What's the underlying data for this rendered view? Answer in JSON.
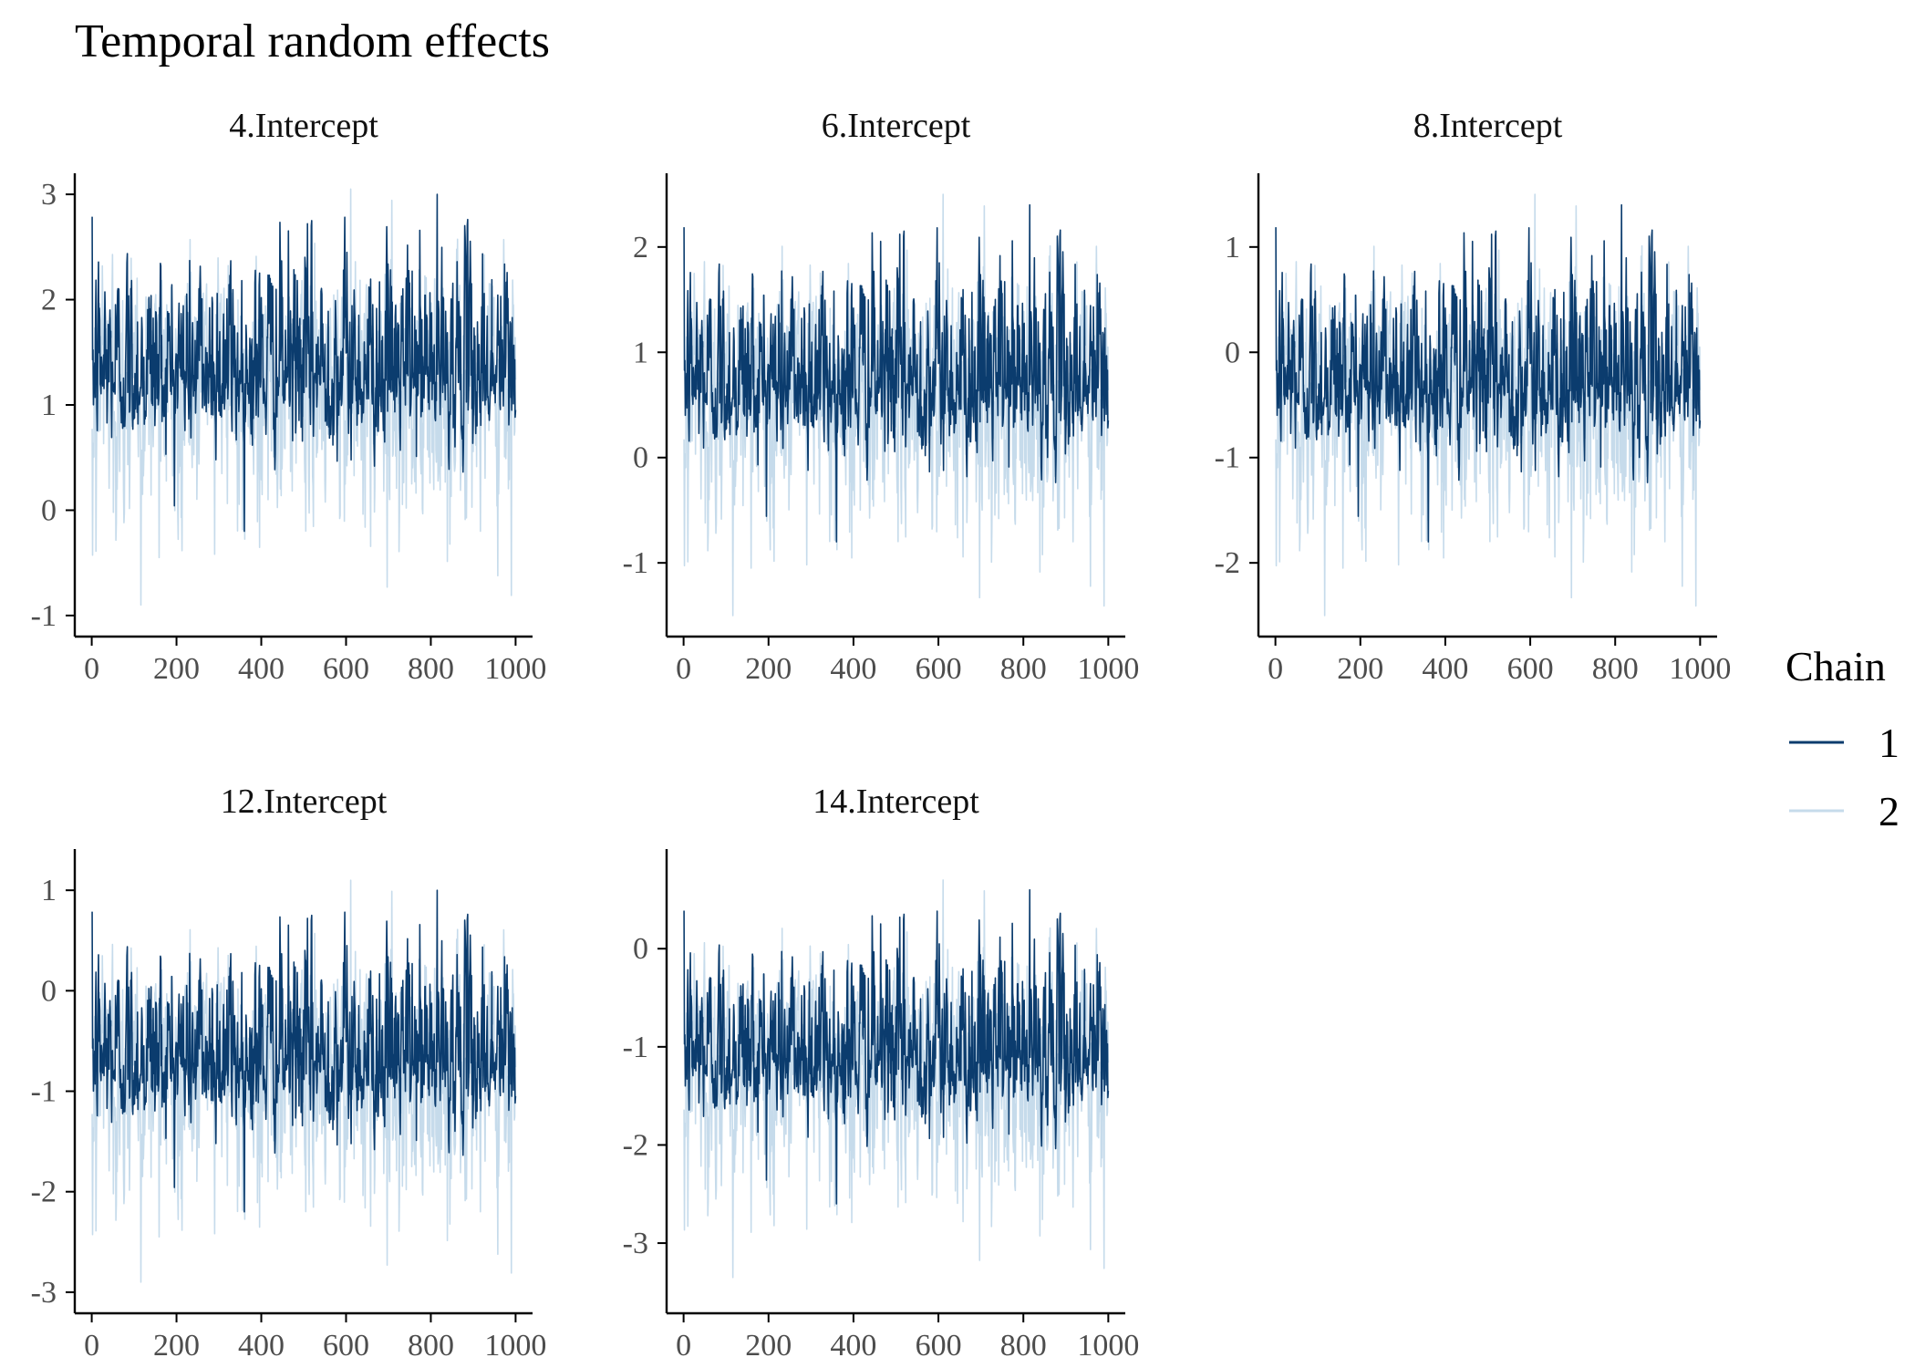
{
  "title": "Temporal random effects",
  "colors": {
    "chain1": "#0b3c6e",
    "chain2": "#c6dbeb",
    "axis": "#000000",
    "tick_text": "#4d4d4d"
  },
  "legend": {
    "title": "Chain",
    "items": [
      {
        "label": "1",
        "color": "#0b3c6e"
      },
      {
        "label": "2",
        "color": "#c6dbeb"
      }
    ]
  },
  "chart_data": [
    {
      "type": "line",
      "panel": "4.Intercept",
      "title": "4.Intercept",
      "xlim": [
        0,
        1000
      ],
      "ylim": [
        -1,
        3
      ],
      "xticks": [
        0,
        200,
        400,
        600,
        800,
        1000
      ],
      "yticks": [
        -1,
        0,
        1,
        2,
        3
      ],
      "center": 1.3,
      "chain1_range": [
        -0.2,
        3.0
      ],
      "chain2_range": [
        -0.9,
        3.05
      ],
      "n_iter": 1000,
      "series": [
        {
          "name": "1"
        },
        {
          "name": "2"
        }
      ]
    },
    {
      "type": "line",
      "panel": "6.Intercept",
      "title": "6.Intercept",
      "xlim": [
        0,
        1000
      ],
      "ylim": [
        -1.5,
        2.5
      ],
      "xticks": [
        0,
        200,
        400,
        600,
        800,
        1000
      ],
      "yticks": [
        -1,
        0,
        1,
        2
      ],
      "center": 0.7,
      "chain1_range": [
        -0.8,
        2.4
      ],
      "chain2_range": [
        -1.5,
        2.5
      ],
      "n_iter": 1000,
      "series": [
        {
          "name": "1"
        },
        {
          "name": "2"
        }
      ]
    },
    {
      "type": "line",
      "panel": "8.Intercept",
      "title": "8.Intercept",
      "xlim": [
        0,
        1000
      ],
      "ylim": [
        -2.5,
        1.5
      ],
      "xticks": [
        0,
        200,
        400,
        600,
        800,
        1000
      ],
      "yticks": [
        -2,
        -1,
        0,
        1
      ],
      "center": -0.3,
      "chain1_range": [
        -1.8,
        1.4
      ],
      "chain2_range": [
        -2.5,
        1.5
      ],
      "n_iter": 1000,
      "series": [
        {
          "name": "1"
        },
        {
          "name": "2"
        }
      ]
    },
    {
      "type": "line",
      "panel": "12.Intercept",
      "title": "12.Intercept",
      "xlim": [
        0,
        1000
      ],
      "ylim": [
        -3,
        1.2
      ],
      "xticks": [
        0,
        200,
        400,
        600,
        800,
        1000
      ],
      "yticks": [
        -3,
        -2,
        -1,
        0,
        1
      ],
      "center": -0.7,
      "chain1_range": [
        -2.2,
        1.0
      ],
      "chain2_range": [
        -2.9,
        1.1
      ],
      "n_iter": 1000,
      "series": [
        {
          "name": "1"
        },
        {
          "name": "2"
        }
      ]
    },
    {
      "type": "line",
      "panel": "14.Intercept",
      "title": "14.Intercept",
      "xlim": [
        0,
        1000
      ],
      "ylim": [
        -3.5,
        0.8
      ],
      "xticks": [
        0,
        200,
        400,
        600,
        800,
        1000
      ],
      "yticks": [
        -3,
        -2,
        -1,
        0
      ],
      "center": -1.1,
      "chain1_range": [
        -2.6,
        0.6
      ],
      "chain2_range": [
        -3.35,
        0.7
      ],
      "n_iter": 1000,
      "series": [
        {
          "name": "1"
        },
        {
          "name": "2"
        }
      ]
    }
  ]
}
